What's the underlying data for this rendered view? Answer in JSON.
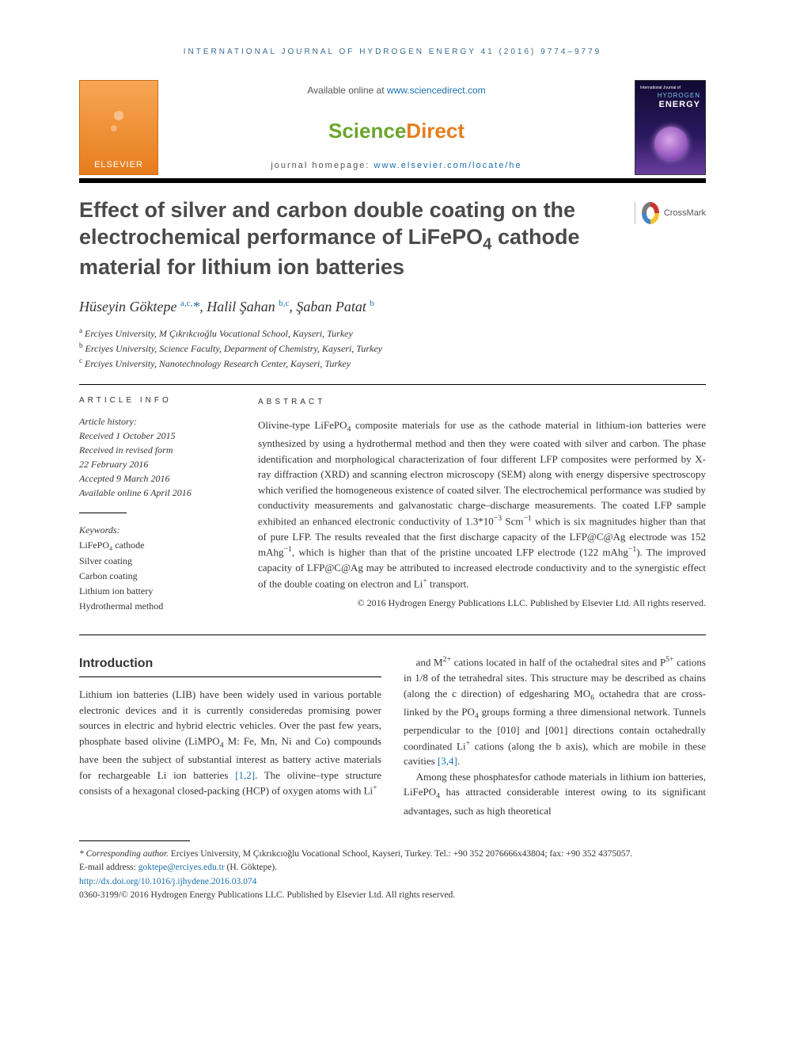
{
  "running_head": "INTERNATIONAL JOURNAL OF HYDROGEN ENERGY 41 (2016) 9774–9779",
  "masthead": {
    "elsevier_label": "ELSEVIER",
    "available_prefix": "Available online at ",
    "available_url": "www.sciencedirect.com",
    "sd_part1": "Science",
    "sd_part2": "Direct",
    "homepage_prefix": "journal homepage: ",
    "homepage_url": "www.elsevier.com/locate/he",
    "cover_line1": "International Journal of",
    "cover_line2": "HYDROGEN",
    "cover_line3": "ENERGY"
  },
  "title_html": "Effect of silver and carbon double coating on the electrochemical performance of LiFePO<sub>4</sub> cathode material for lithium ion batteries",
  "crossmark_label": "CrossMark",
  "authors_html": "Hüseyin Göktepe <sup>a,c,</sup><span class=\"star\">*</span>, Halil Şahan <sup>b,c</sup>, Şaban Patat <sup>b</sup>",
  "affiliations": {
    "a": "Erciyes University, M Çıkrıkcıoğlu Vocational School, Kayseri, Turkey",
    "b": "Erciyes University, Science Faculty, Deparment of Chemistry, Kayseri, Turkey",
    "c": "Erciyes University, Nanotechnology Research Center, Kayseri, Turkey"
  },
  "article_info_head": "ARTICLE INFO",
  "abstract_head": "ABSTRACT",
  "history_label": "Article history:",
  "history": [
    "Received 1 October 2015",
    "Received in revised form",
    "22 February 2016",
    "Accepted 9 March 2016",
    "Available online 6 April 2016"
  ],
  "keywords_label": "Keywords:",
  "keywords": [
    "LiFePO₄ cathode",
    "Silver coating",
    "Carbon coating",
    "Lithium ion battery",
    "Hydrothermal method"
  ],
  "abstract_html": "Olivine-type LiFePO<sub>4</sub> composite materials for use as the cathode material in lithium-ion batteries were synthesized by using a hydrothermal method and then they were coated with silver and carbon. The phase identification and morphological characterization of four different LFP composites were performed by X-ray diffraction (XRD) and scanning electron microscopy (SEM) along with energy dispersive spectroscopy which verified the homogeneous existence of coated silver. The electrochemical performance was studied by conductivity measurements and galvanostatic charge–discharge measurements. The coated LFP sample exhibited an enhanced electronic conductivity of 1.3*10<sup class=\"chem\">−3</sup> Scm<sup class=\"chem\">−1</sup> which is six magnitudes higher than that of pure LFP. The results revealed that the first discharge capacity of the LFP@C@Ag electrode was 152 mAhg<sup class=\"chem\">−1</sup>, which is higher than that of the pristine uncoated LFP electrode (122 mAhg<sup class=\"chem\">−1</sup>). The improved capacity of LFP@C@Ag may be attributed to increased electrode conductivity and to the synergistic effect of the double coating on electron and Li<sup class=\"chem\">+</sup> transport.",
  "copyright": "© 2016 Hydrogen Energy Publications LLC. Published by Elsevier Ltd. All rights reserved.",
  "intro_head": "Introduction",
  "intro_p1_html": "Lithium ion batteries (LIB) have been widely used in various portable electronic devices and it is currently consideredas promising power sources in electric and hybrid electric vehicles. Over the past few years, phosphate based olivine (LiMPO<sub>4</sub> M: Fe, Mn, Ni and Co) compounds have been the subject of substantial interest as battery active materials for rechargeable Li ion batteries <span class=\"ref-link\">[1,2]</span>. The olivine–type structure consists of a hexagonal closed-packing (HCP) of oxygen atoms with Li<sup class=\"chem\">+</sup>",
  "intro_p2_html": "and M<sup class=\"chem\">2+</sup> cations located in half of the octahedral sites and P<sup class=\"chem\">5+</sup> cations in 1/8 of the tetrahedral sites. This structure may be described as chains (along the c direction) of edgesharing MO<sub>6</sub> octahedra that are cross-linked by the PO<sub>4</sub> groups forming a three dimensional network. Tunnels perpendicular to the [010] and [001] directions contain octahedrally coordinated Li<sup class=\"chem\">+</sup> cations (along the b axis), which are mobile in these cavities <span class=\"ref-link\">[3,4]</span>.",
  "intro_p3_html": "Among these phosphatesfor cathode materials in lithium ion batteries, LiFePO<sub>4</sub> has attracted considerable interest owing to its significant advantages, such as high theoretical",
  "footnotes": {
    "corr_label": "* Corresponding author.",
    "corr_text": " Erciyes University, M Çıkrıkcıoğlu Vocational School, Kayseri, Turkey. Tel.: +90 352 2076666x43804; fax: +90 352 4375057.",
    "email_label": "E-mail address: ",
    "email": "goktepe@erciyes.edu.tr",
    "email_suffix": " (H. Göktepe).",
    "doi": "http://dx.doi.org/10.1016/j.ijhydene.2016.03.074",
    "issn_line": "0360-3199/© 2016 Hydrogen Energy Publications LLC. Published by Elsevier Ltd. All rights reserved."
  }
}
